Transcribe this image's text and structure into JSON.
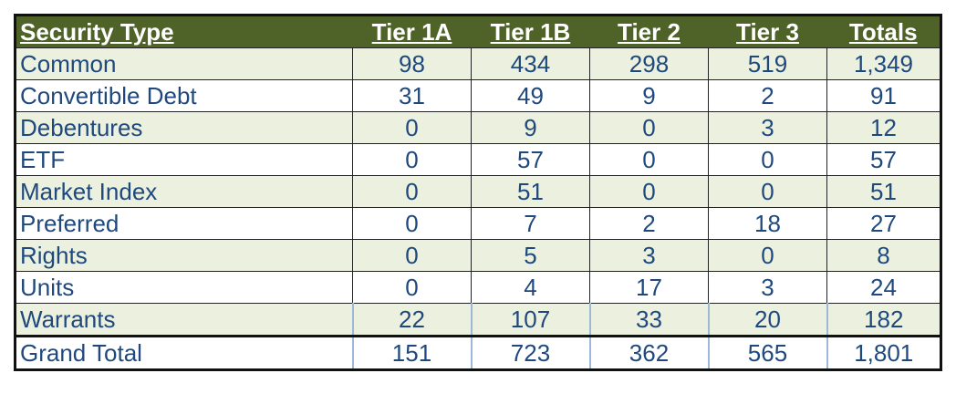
{
  "table": {
    "header": [
      "Security Type",
      "Tier 1A",
      "Tier 1B",
      "Tier 2",
      "Tier 3",
      "Totals"
    ],
    "rows": [
      [
        "Common",
        "98",
        "434",
        "298",
        "519",
        "1,349"
      ],
      [
        "Convertible Debt",
        "31",
        "49",
        "9",
        "2",
        "91"
      ],
      [
        "Debentures",
        "0",
        "9",
        "0",
        "3",
        "12"
      ],
      [
        "ETF",
        "0",
        "57",
        "0",
        "0",
        "57"
      ],
      [
        "Market Index",
        "0",
        "51",
        "0",
        "0",
        "51"
      ],
      [
        "Preferred",
        "0",
        "7",
        "2",
        "18",
        "27"
      ],
      [
        "Rights",
        "0",
        "5",
        "3",
        "0",
        "8"
      ],
      [
        "Units",
        "0",
        "4",
        "17",
        "3",
        "24"
      ],
      [
        "Warrants",
        "22",
        "107",
        "33",
        "20",
        "182"
      ],
      [
        "Grand Total",
        "151",
        "723",
        "362",
        "565",
        "1,801"
      ]
    ]
  }
}
